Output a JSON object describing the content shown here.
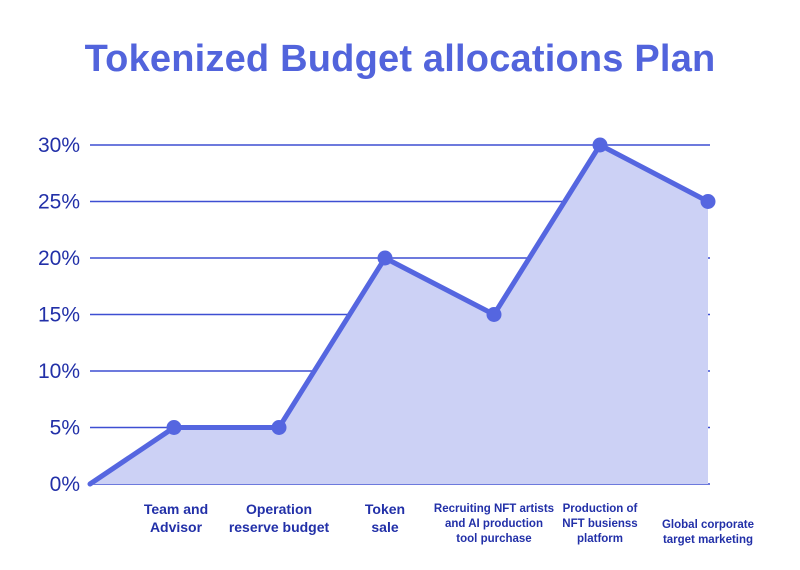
{
  "chart_data": {
    "type": "area",
    "title": "Tokenized Budget allocations Plan",
    "xlabel": "",
    "ylabel": "",
    "y_tick_labels": [
      "0%",
      "5%",
      "10%",
      "15%",
      "20%",
      "25%",
      "30%"
    ],
    "ylim": [
      0,
      30
    ],
    "grid": true,
    "start_value": 0,
    "categories": [
      "Team and Advisor",
      "Operation reserve budget",
      "Token sale",
      "Recruiting NFT artists and AI production tool purchase",
      "Production of NFT busienss platform",
      "Global corporate target marketing"
    ],
    "category_label_lines": [
      [
        "Team and",
        "Advisor"
      ],
      [
        "Operation",
        "reserve budget"
      ],
      [
        "Token",
        "sale"
      ],
      [
        "Recruiting NFT artists",
        "and AI production",
        "tool purchase"
      ],
      [
        "Production of",
        "NFT busienss",
        "platform"
      ],
      [
        "Global corporate",
        "target marketing"
      ]
    ],
    "values": [
      5,
      5,
      20,
      15,
      30,
      25
    ],
    "colors": {
      "title": "#5264dc",
      "axis_text": "#2230a8",
      "gridline": "#3d4fd2",
      "line": "#5566e0",
      "fill": "#ccd1f5",
      "marker": "#5566e0"
    }
  }
}
